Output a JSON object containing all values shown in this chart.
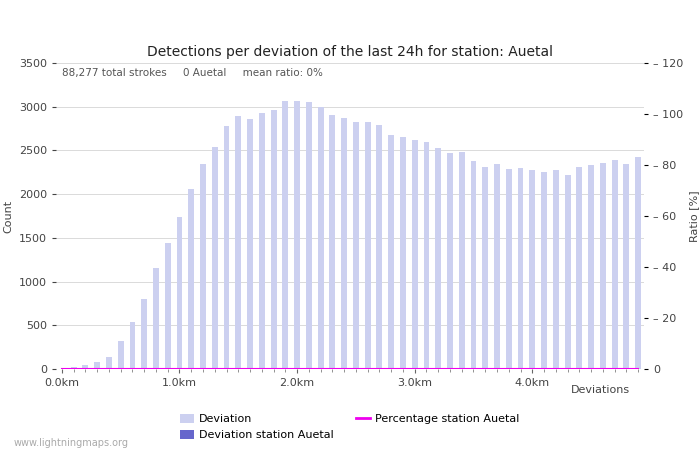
{
  "title": "Detections per deviation of the last 24h for station: Auetal",
  "subtitle": "88,277 total strokes     0 Auetal     mean ratio: 0%",
  "ylabel_left": "Count",
  "ylabel_right": "Ratio [%]",
  "xlabel": "Deviations",
  "bar_color_deviation": "#ccd0f0",
  "bar_color_station": "#6666cc",
  "line_color": "#ee00ee",
  "background_color": "#ffffff",
  "watermark": "www.lightningmaps.org",
  "ylim_left": [
    0,
    3500
  ],
  "ylim_right": [
    0,
    120
  ],
  "deviation_values": [
    5,
    20,
    50,
    80,
    140,
    320,
    535,
    800,
    1150,
    1440,
    1740,
    2060,
    2350,
    2540,
    2780,
    2890,
    2860,
    2930,
    2960,
    3065,
    3070,
    3050,
    3000,
    2910,
    2870,
    2830,
    2830,
    2790,
    2680,
    2650,
    2620,
    2600,
    2530,
    2470,
    2480,
    2380,
    2310,
    2350,
    2290,
    2300,
    2280,
    2250,
    2280,
    2220,
    2310,
    2330,
    2360,
    2390,
    2350,
    2420
  ],
  "station_values": [
    0,
    0,
    0,
    0,
    0,
    0,
    0,
    0,
    0,
    0,
    0,
    0,
    0,
    0,
    0,
    0,
    0,
    0,
    0,
    0,
    0,
    0,
    0,
    0,
    0,
    0,
    0,
    0,
    0,
    0,
    0,
    0,
    0,
    0,
    0,
    0,
    0,
    0,
    0,
    0,
    0,
    0,
    0,
    0,
    0,
    0,
    0,
    0,
    0,
    0
  ],
  "percentage_values": [
    0,
    0,
    0,
    0,
    0,
    0,
    0,
    0,
    0,
    0,
    0,
    0,
    0,
    0,
    0,
    0,
    0,
    0,
    0,
    0,
    0,
    0,
    0,
    0,
    0,
    0,
    0,
    0,
    0,
    0,
    0,
    0,
    0,
    0,
    0,
    0,
    0,
    0,
    0,
    0,
    0,
    0,
    0,
    0,
    0,
    0,
    0,
    0,
    0,
    0
  ],
  "n_bars": 50,
  "yticks_left": [
    0,
    500,
    1000,
    1500,
    2000,
    2500,
    3000,
    3500
  ],
  "yticks_right": [
    0,
    20,
    40,
    60,
    80,
    100,
    120
  ],
  "ytick_right_labels": [
    "0",
    "– 20",
    "– 40",
    "– 60",
    "– 80",
    "– 100",
    "– 120"
  ],
  "xtick_positions": [
    0,
    10,
    20,
    30,
    40
  ],
  "xtick_labels": [
    "0.0km",
    "1.0km",
    "2.0km",
    "3.0km",
    "4.0km"
  ],
  "legend_labels": [
    "Deviation",
    "Deviation station Auetal",
    "Percentage station Auetal"
  ],
  "title_fontsize": 10,
  "label_fontsize": 8,
  "tick_fontsize": 8,
  "subtitle_fontsize": 7.5,
  "watermark_fontsize": 7
}
